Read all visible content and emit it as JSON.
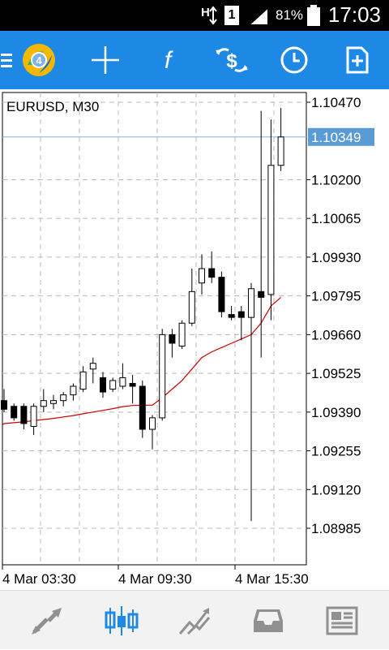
{
  "status_bar": {
    "battery_percent": "81%",
    "time": "17:03",
    "sim_label": "1"
  },
  "toolbar": {
    "icons": [
      "menu-icon",
      "metatrader-logo",
      "crosshair-icon",
      "indicators-icon",
      "trade-icon",
      "period-icon",
      "add-object-icon"
    ]
  },
  "chart": {
    "symbol_label": "EURUSD, M30",
    "current_price": "1.10349",
    "price_axis_labels": [
      "1.10470",
      "1.10200",
      "1.10065",
      "1.09930",
      "1.09795",
      "1.09660",
      "1.09525",
      "1.09390",
      "1.09255",
      "1.09120",
      "1.08985"
    ],
    "time_axis_labels": [
      "4 Mar 03:30",
      "4 Mar 09:30",
      "4 Mar 15:30"
    ],
    "colors": {
      "grid": "#bbbbbb",
      "price_line": "#7ab8d6",
      "price_tag_bg": "#5b9bd5",
      "ma": "#cc0000"
    }
  },
  "chart_data": {
    "type": "candlestick",
    "title": "EURUSD, M30",
    "ylim": [
      1.0885,
      1.1052
    ],
    "candles": [
      {
        "o": 1.0943,
        "h": 1.0947,
        "l": 1.0939,
        "c": 1.094
      },
      {
        "o": 1.0941,
        "h": 1.0942,
        "l": 1.0936,
        "c": 1.0937
      },
      {
        "o": 1.0941,
        "h": 1.0942,
        "l": 1.0933,
        "c": 1.0935
      },
      {
        "o": 1.0934,
        "h": 1.0942,
        "l": 1.0931,
        "c": 1.0941
      },
      {
        "o": 1.0941,
        "h": 1.0947,
        "l": 1.0939,
        "c": 1.0943
      },
      {
        "o": 1.0942,
        "h": 1.0945,
        "l": 1.094,
        "c": 1.0943
      },
      {
        "o": 1.0943,
        "h": 1.0946,
        "l": 1.0941,
        "c": 1.0945
      },
      {
        "o": 1.0945,
        "h": 1.0949,
        "l": 1.0943,
        "c": 1.0948
      },
      {
        "o": 1.0947,
        "h": 1.0955,
        "l": 1.0946,
        "c": 1.0953
      },
      {
        "o": 1.0954,
        "h": 1.0958,
        "l": 1.0949,
        "c": 1.0956
      },
      {
        "o": 1.0951,
        "h": 1.0953,
        "l": 1.0944,
        "c": 1.0946
      },
      {
        "o": 1.0947,
        "h": 1.0951,
        "l": 1.0946,
        "c": 1.095
      },
      {
        "o": 1.0948,
        "h": 1.0956,
        "l": 1.0947,
        "c": 1.0951
      },
      {
        "o": 1.0949,
        "h": 1.0952,
        "l": 1.0942,
        "c": 1.0948
      },
      {
        "o": 1.0948,
        "h": 1.095,
        "l": 1.093,
        "c": 1.0933
      },
      {
        "o": 1.0933,
        "h": 1.0938,
        "l": 1.0926,
        "c": 1.0937
      },
      {
        "o": 1.0937,
        "h": 1.0968,
        "l": 1.0936,
        "c": 1.0966
      },
      {
        "o": 1.0966,
        "h": 1.0968,
        "l": 1.0958,
        "c": 1.0963
      },
      {
        "o": 1.0962,
        "h": 1.0971,
        "l": 1.0961,
        "c": 1.097
      },
      {
        "o": 1.097,
        "h": 1.0989,
        "l": 1.0969,
        "c": 1.0981
      },
      {
        "o": 1.0984,
        "h": 1.0994,
        "l": 1.098,
        "c": 1.0989
      },
      {
        "o": 1.0989,
        "h": 1.0995,
        "l": 1.0984,
        "c": 1.0986
      },
      {
        "o": 1.0986,
        "h": 1.0988,
        "l": 1.0972,
        "c": 1.0974
      },
      {
        "o": 1.0973,
        "h": 1.0976,
        "l": 1.0971,
        "c": 1.0972
      },
      {
        "o": 1.0974,
        "h": 1.0976,
        "l": 1.0964,
        "c": 1.0972
      },
      {
        "o": 1.0972,
        "h": 1.0984,
        "l": 1.0901,
        "c": 1.0982
      },
      {
        "o": 1.0981,
        "h": 1.1044,
        "l": 1.0958,
        "c": 1.0979
      },
      {
        "o": 1.098,
        "h": 1.1041,
        "l": 1.0971,
        "c": 1.1025
      },
      {
        "o": 1.1025,
        "h": 1.1045,
        "l": 1.1023,
        "c": 1.10349
      }
    ],
    "moving_average": [
      1.0935,
      1.09353,
      1.09356,
      1.0936,
      1.09364,
      1.09368,
      1.09373,
      1.09378,
      1.09384,
      1.0939,
      1.09396,
      1.09402,
      1.09409,
      1.09413,
      1.09414,
      1.09414,
      1.0944,
      1.0947,
      1.095,
      1.0954,
      1.0958,
      1.096,
      1.09615,
      1.0963,
      1.09645,
      1.0966,
      1.097,
      1.0976,
      1.0979
    ],
    "current_price": 1.10349
  },
  "bottom_nav": {
    "tabs": [
      {
        "name": "quotes-tab",
        "icon": "quotes-arrows-icon",
        "active": false
      },
      {
        "name": "chart-tab",
        "icon": "candlestick-icon",
        "active": true
      },
      {
        "name": "trade-tab",
        "icon": "trend-icon",
        "active": false
      },
      {
        "name": "history-tab",
        "icon": "inbox-icon",
        "active": false
      },
      {
        "name": "news-tab",
        "icon": "news-icon",
        "active": false
      }
    ]
  }
}
